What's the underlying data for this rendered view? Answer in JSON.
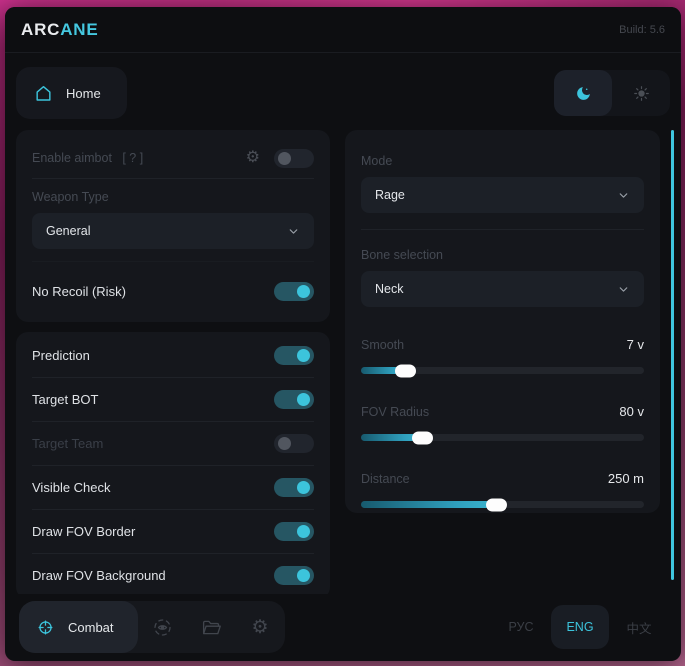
{
  "header": {
    "brand_prefix": "ARC",
    "brand_suffix": "ANE",
    "build": "Build: 5.6"
  },
  "nav": {
    "home_label": "Home"
  },
  "left_panel": {
    "aimbot_label": "Enable aimbot",
    "aimbot_help": "[ ? ]",
    "aimbot_on": false,
    "weapon_type_label": "Weapon Type",
    "weapon_type_value": "General",
    "no_recoil": {
      "label": "No Recoil (Risk)",
      "on": true
    },
    "toggles": [
      {
        "label": "Prediction",
        "on": true
      },
      {
        "label": "Target BOT",
        "on": true
      },
      {
        "label": "Target Team",
        "on": false
      },
      {
        "label": "Visible Check",
        "on": true
      },
      {
        "label": "Draw FOV Border",
        "on": true
      },
      {
        "label": "Draw FOV Background",
        "on": true
      }
    ]
  },
  "right_panel": {
    "mode_label": "Mode",
    "mode_value": "Rage",
    "bone_label": "Bone selection",
    "bone_value": "Neck",
    "sliders": [
      {
        "label": "Smooth",
        "value": "7 v",
        "percent": 16
      },
      {
        "label": "FOV Radius",
        "value": "80 v",
        "percent": 22
      },
      {
        "label": "Distance",
        "value": "250 m",
        "percent": 48
      }
    ]
  },
  "bottom_bar": {
    "combat_label": "Combat",
    "languages": [
      {
        "label": "РУС",
        "active": false
      },
      {
        "label": "ENG",
        "active": true
      },
      {
        "label": "中文",
        "active": false
      }
    ]
  },
  "colors": {
    "accent": "#3cc4dc",
    "toggle_on_track": "#265663",
    "card_bg": "#15171c",
    "window_bg": "#0e0f12"
  }
}
